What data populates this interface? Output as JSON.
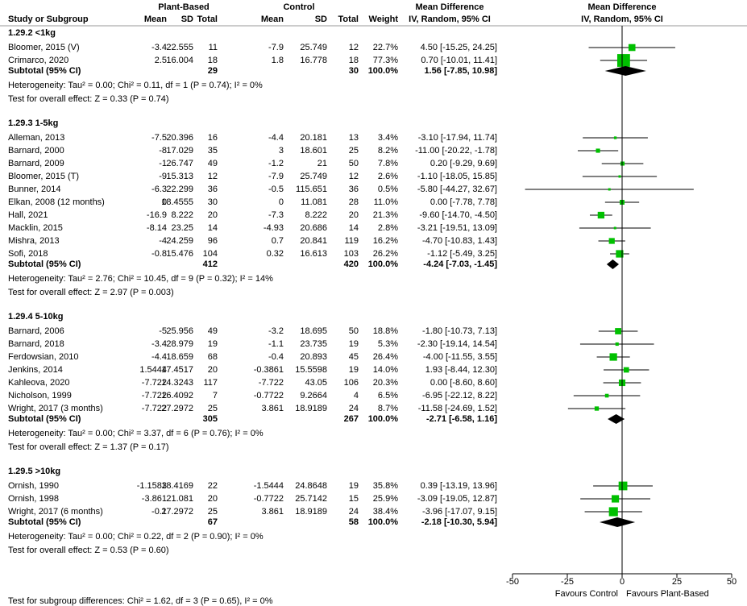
{
  "chart_data": {
    "type": "forest",
    "headers": {
      "study": "Study or Subgroup",
      "group1": "Plant-Based",
      "group2": "Control",
      "mean": "Mean",
      "sd": "SD",
      "total": "Total",
      "weight": "Weight",
      "md_table": "Mean Difference",
      "md_table_sub": "IV, Random, 95% CI",
      "md_plot": "Mean Difference",
      "md_plot_sub": "IV, Random, 95% CI"
    },
    "groups": [
      {
        "title": "1.29.2 <1kg",
        "studies": [
          {
            "name": "Bloomer, 2015 (V)",
            "m1": -3.4,
            "sd1": 22.555,
            "n1": 11,
            "m2": -7.9,
            "sd2": 25.749,
            "n2": 12,
            "weight": 22.7,
            "weight_label": "22.7%",
            "md_label": "4.50 [-15.25, 24.25]",
            "md": [
              4.5,
              -15.25,
              24.25
            ]
          },
          {
            "name": "Crimarco, 2020",
            "m1": 2.5,
            "sd1": 16.004,
            "n1": 18,
            "m2": 1.8,
            "sd2": 16.778,
            "n2": 18,
            "weight": 77.3,
            "weight_label": "77.3%",
            "md_label": "0.70 [-10.01, 11.41]",
            "md": [
              0.7,
              -10.01,
              11.41
            ]
          }
        ],
        "subtotal": {
          "name": "Subtotal (95% CI)",
          "n1": 29,
          "n2": 30,
          "weight_label": "100.0%",
          "md_label": "1.56 [-7.85, 10.98]",
          "md": [
            1.56,
            -7.85,
            10.98
          ]
        },
        "heterogeneity": "Heterogeneity: Tau² = 0.00; Chi² = 0.11, df = 1 (P = 0.74); I² = 0%",
        "overall": "Test for overall effect: Z = 0.33 (P = 0.74)"
      },
      {
        "title": "1.29.3 1-5kg",
        "studies": [
          {
            "name": "Alleman, 2013",
            "m1": -7.5,
            "sd1": 20.396,
            "n1": 16,
            "m2": -4.4,
            "sd2": 20.181,
            "n2": 13,
            "weight": 3.4,
            "weight_label": "3.4%",
            "md_label": "-3.10 [-17.94, 11.74]",
            "md": [
              -3.1,
              -17.94,
              11.74
            ]
          },
          {
            "name": "Barnard, 2000",
            "m1": -8,
            "sd1": 17.029,
            "n1": 35,
            "m2": 3,
            "sd2": 18.601,
            "n2": 25,
            "weight": 8.2,
            "weight_label": "8.2%",
            "md_label": "-11.00 [-20.22, -1.78]",
            "md": [
              -11,
              -20.22,
              -1.78
            ]
          },
          {
            "name": "Barnard, 2009",
            "m1": -1,
            "sd1": 26.747,
            "n1": 49,
            "m2": -1.2,
            "sd2": 21,
            "n2": 50,
            "weight": 7.8,
            "weight_label": "7.8%",
            "md_label": "0.20 [-9.29, 9.69]",
            "md": [
              0.2,
              -9.29,
              9.69
            ]
          },
          {
            "name": "Bloomer, 2015 (T)",
            "m1": -9,
            "sd1": 15.313,
            "n1": 12,
            "m2": -7.9,
            "sd2": 25.749,
            "n2": 12,
            "weight": 2.6,
            "weight_label": "2.6%",
            "md_label": "-1.10 [-18.05, 15.85]",
            "md": [
              -1.1,
              -18.05,
              15.85
            ]
          },
          {
            "name": "Bunner, 2014",
            "m1": -6.3,
            "sd1": 22.299,
            "n1": 36,
            "m2": -0.5,
            "sd2": 115.651,
            "n2": 36,
            "weight": 0.5,
            "weight_label": "0.5%",
            "md_label": "-5.80 [-44.27, 32.67]",
            "md": [
              -5.8,
              -44.27,
              32.67
            ]
          },
          {
            "name": "Elkan, 2008 (12 months)",
            "m1": 0,
            "sd1": 18.4555,
            "n1": 30,
            "m2": 0,
            "sd2": 11.081,
            "n2": 28,
            "weight": 11.0,
            "weight_label": "11.0%",
            "md_label": "0.00 [-7.78, 7.78]",
            "md": [
              0,
              -7.78,
              7.78
            ]
          },
          {
            "name": "Hall, 2021",
            "m1": -16.9,
            "sd1": 8.222,
            "n1": 20,
            "m2": -7.3,
            "sd2": 8.222,
            "n2": 20,
            "weight": 21.3,
            "weight_label": "21.3%",
            "md_label": "-9.60 [-14.70, -4.50]",
            "md": [
              -9.6,
              -14.7,
              -4.5
            ]
          },
          {
            "name": "Macklin, 2015",
            "m1": -8.14,
            "sd1": 23.25,
            "n1": 14,
            "m2": -4.93,
            "sd2": 20.686,
            "n2": 14,
            "weight": 2.8,
            "weight_label": "2.8%",
            "md_label": "-3.21 [-19.51, 13.09]",
            "md": [
              -3.21,
              -19.51,
              13.09
            ]
          },
          {
            "name": "Mishra, 2013",
            "m1": -4,
            "sd1": 24.259,
            "n1": 96,
            "m2": 0.7,
            "sd2": 20.841,
            "n2": 119,
            "weight": 16.2,
            "weight_label": "16.2%",
            "md_label": "-4.70 [-10.83, 1.43]",
            "md": [
              -4.7,
              -10.83,
              1.43
            ]
          },
          {
            "name": "Sofi, 2018",
            "m1": -0.8,
            "sd1": 15.476,
            "n1": 104,
            "m2": 0.32,
            "sd2": 16.613,
            "n2": 103,
            "weight": 26.2,
            "weight_label": "26.2%",
            "md_label": "-1.12 [-5.49, 3.25]",
            "md": [
              -1.12,
              -5.49,
              3.25
            ]
          }
        ],
        "subtotal": {
          "name": "Subtotal (95% CI)",
          "n1": 412,
          "n2": 420,
          "weight_label": "100.0%",
          "md_label": "-4.24 [-7.03, -1.45]",
          "md": [
            -4.24,
            -7.03,
            -1.45
          ]
        },
        "heterogeneity": "Heterogeneity: Tau² = 2.76; Chi² = 10.45, df = 9 (P = 0.32); I² = 14%",
        "overall": "Test for overall effect: Z = 2.97 (P = 0.003)"
      },
      {
        "title": "1.29.4 5-10kg",
        "studies": [
          {
            "name": "Barnard, 2006",
            "m1": -5,
            "sd1": 25.956,
            "n1": 49,
            "m2": -3.2,
            "sd2": 18.695,
            "n2": 50,
            "weight": 18.8,
            "weight_label": "18.8%",
            "md_label": "-1.80 [-10.73, 7.13]",
            "md": [
              -1.8,
              -10.73,
              7.13
            ]
          },
          {
            "name": "Barnard, 2018",
            "m1": -3.4,
            "sd1": 28.979,
            "n1": 19,
            "m2": -1.1,
            "sd2": 23.735,
            "n2": 19,
            "weight": 5.3,
            "weight_label": "5.3%",
            "md_label": "-2.30 [-19.14, 14.54]",
            "md": [
              -2.3,
              -19.14,
              14.54
            ]
          },
          {
            "name": "Ferdowsian, 2010",
            "m1": -4.4,
            "sd1": 18.659,
            "n1": 68,
            "m2": -0.4,
            "sd2": 20.893,
            "n2": 45,
            "weight": 26.4,
            "weight_label": "26.4%",
            "md_label": "-4.00 [-11.55, 3.55]",
            "md": [
              -4,
              -11.55,
              3.55
            ]
          },
          {
            "name": "Jenkins, 2014",
            "m1": 1.5444,
            "sd1": 17.4517,
            "n1": 20,
            "m2": -0.3861,
            "sd2": 15.5598,
            "n2": 19,
            "weight": 14.0,
            "weight_label": "14.0%",
            "md_label": "1.93 [-8.44, 12.30]",
            "md": [
              1.93,
              -8.44,
              12.3
            ]
          },
          {
            "name": "Kahleova, 2020",
            "m1": -7.722,
            "sd1": 14.3243,
            "n1": 117,
            "m2": -7.722,
            "sd2": 43.05,
            "n2": 106,
            "weight": 20.3,
            "weight_label": "20.3%",
            "md_label": "0.00 [-8.60, 8.60]",
            "md": [
              0,
              -8.6,
              8.6
            ]
          },
          {
            "name": "Nicholson, 1999",
            "m1": -7.722,
            "sd1": 16.4092,
            "n1": 7,
            "m2": -0.7722,
            "sd2": 9.2664,
            "n2": 4,
            "weight": 6.5,
            "weight_label": "6.5%",
            "md_label": "-6.95 [-22.12, 8.22]",
            "md": [
              -6.95,
              -22.12,
              8.22
            ]
          },
          {
            "name": "Wright, 2017 (3 months)",
            "m1": -7.722,
            "sd1": 27.2972,
            "n1": 25,
            "m2": 3.861,
            "sd2": 18.9189,
            "n2": 24,
            "weight": 8.7,
            "weight_label": "8.7%",
            "md_label": "-11.58 [-24.69, 1.52]",
            "md": [
              -11.58,
              -24.69,
              1.52
            ]
          }
        ],
        "subtotal": {
          "name": "Subtotal (95% CI)",
          "n1": 305,
          "n2": 267,
          "weight_label": "100.0%",
          "md_label": "-2.71 [-6.58, 1.16]",
          "md": [
            -2.71,
            -6.58,
            1.16
          ]
        },
        "heterogeneity": "Heterogeneity: Tau² = 0.00; Chi² = 3.37, df = 6 (P = 0.76); I² = 0%",
        "overall": "Test for overall effect: Z = 1.37 (P = 0.17)"
      },
      {
        "title": "1.29.5 >10kg",
        "studies": [
          {
            "name": "Ornish, 1990",
            "m1": -1.1583,
            "sd1": 18.4169,
            "n1": 22,
            "m2": -1.5444,
            "sd2": 24.8648,
            "n2": 19,
            "weight": 35.8,
            "weight_label": "35.8%",
            "md_label": "0.39 [-13.19, 13.96]",
            "md": [
              0.39,
              -13.19,
              13.96
            ]
          },
          {
            "name": "Ornish, 1998",
            "m1": -3.861,
            "sd1": 21.081,
            "n1": 20,
            "m2": -0.7722,
            "sd2": 25.7142,
            "n2": 15,
            "weight": 25.9,
            "weight_label": "25.9%",
            "md_label": "-3.09 [-19.05, 12.87]",
            "md": [
              -3.09,
              -19.05,
              12.87
            ]
          },
          {
            "name": "Wright, 2017 (6 months)",
            "m1": -0.1,
            "sd1": 27.2972,
            "n1": 25,
            "m2": 3.861,
            "sd2": 18.9189,
            "n2": 24,
            "weight": 38.4,
            "weight_label": "38.4%",
            "md_label": "-3.96 [-17.07, 9.15]",
            "md": [
              -3.96,
              -17.07,
              9.15
            ]
          }
        ],
        "subtotal": {
          "name": "Subtotal (95% CI)",
          "n1": 67,
          "n2": 58,
          "weight_label": "100.0%",
          "md_label": "-2.18 [-10.30, 5.94]",
          "md": [
            -2.18,
            -10.3,
            5.94
          ]
        },
        "heterogeneity": "Heterogeneity: Tau² = 0.00; Chi² = 0.22, df = 2 (P = 0.90); I² = 0%",
        "overall": "Test for overall effect: Z = 0.53 (P = 0.60)"
      }
    ],
    "xlim": [
      -50,
      50
    ],
    "xticks": [
      -50,
      -25,
      0,
      25,
      50
    ],
    "favours_left": "Favours Control",
    "favours_right": "Favours Plant-Based",
    "subgroup_test": "Test for subgroup differences: Chi² = 1.62, df = 3 (P = 0.65), I² = 0%",
    "marker_color": "#00c000"
  }
}
